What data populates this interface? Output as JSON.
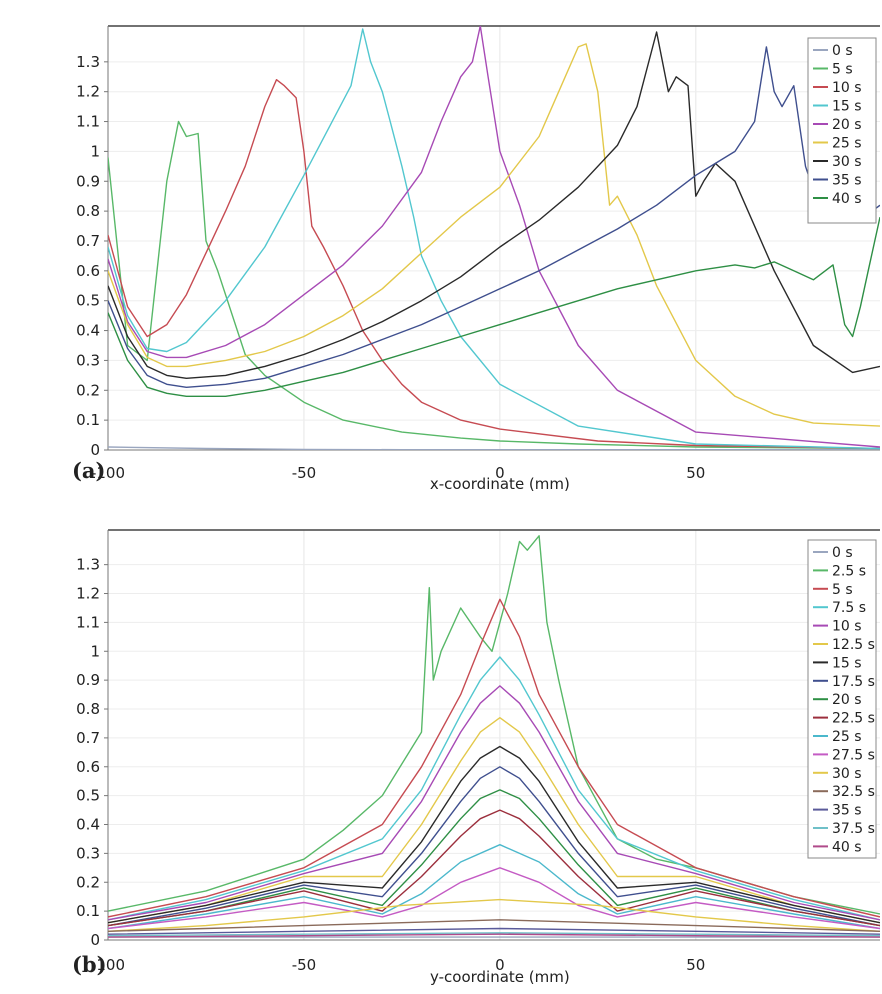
{
  "chart_data": [
    {
      "panel": "(a)",
      "type": "line",
      "title": "",
      "xlabel": "x-coordinate (mm)",
      "ylabel": "",
      "xlim": [
        -100,
        97
      ],
      "ylim": [
        0,
        1.42
      ],
      "x_ticks": [
        -100,
        -50,
        0,
        50
      ],
      "y_ticks": [
        0,
        0.1,
        0.2,
        0.3,
        0.4,
        0.5,
        0.6,
        0.7,
        0.8,
        0.9,
        1,
        1.1,
        1.2,
        1.3
      ],
      "grid": true,
      "legend_position": "top-right",
      "series": [
        {
          "name": "0 s",
          "color": "#9aa6bf",
          "x": [
            -100,
            -75,
            -50,
            -25,
            0,
            25,
            50,
            75,
            97
          ],
          "y": [
            0.01,
            0.005,
            0.002,
            0.001,
            0.001,
            0.001,
            0.001,
            0.001,
            0.001
          ]
        },
        {
          "name": "5 s",
          "color": "#58b868",
          "x": [
            -100,
            -95,
            -90,
            -85,
            -82,
            -80,
            -77,
            -75,
            -72,
            -65,
            -60,
            -50,
            -40,
            -25,
            -10,
            0,
            20,
            50,
            97
          ],
          "y": [
            0.98,
            0.35,
            0.3,
            0.9,
            1.1,
            1.05,
            1.06,
            0.7,
            0.6,
            0.32,
            0.25,
            0.16,
            0.1,
            0.06,
            0.04,
            0.03,
            0.02,
            0.01,
            0.005
          ]
        },
        {
          "name": "10 s",
          "color": "#c64b52",
          "x": [
            -100,
            -95,
            -90,
            -85,
            -80,
            -75,
            -70,
            -65,
            -60,
            -57,
            -55,
            -52,
            -50,
            -48,
            -45,
            -40,
            -35,
            -30,
            -25,
            -20,
            -10,
            0,
            25,
            50,
            97
          ],
          "y": [
            0.72,
            0.48,
            0.38,
            0.42,
            0.52,
            0.66,
            0.8,
            0.95,
            1.15,
            1.24,
            1.22,
            1.18,
            1.0,
            0.75,
            0.68,
            0.55,
            0.4,
            0.3,
            0.22,
            0.16,
            0.1,
            0.07,
            0.03,
            0.015,
            0.005
          ]
        },
        {
          "name": "15 s",
          "color": "#52c7cf",
          "x": [
            -100,
            -95,
            -90,
            -85,
            -80,
            -70,
            -60,
            -50,
            -42,
            -38,
            -35,
            -33,
            -30,
            -28,
            -25,
            -22,
            -20,
            -15,
            -10,
            0,
            20,
            50,
            97
          ],
          "y": [
            0.68,
            0.45,
            0.34,
            0.33,
            0.36,
            0.5,
            0.68,
            0.92,
            1.12,
            1.22,
            1.41,
            1.3,
            1.2,
            1.1,
            0.95,
            0.78,
            0.65,
            0.5,
            0.38,
            0.22,
            0.08,
            0.02,
            0.005
          ]
        },
        {
          "name": "20 s",
          "color": "#a74ab5",
          "x": [
            -100,
            -95,
            -90,
            -85,
            -80,
            -70,
            -60,
            -50,
            -40,
            -30,
            -20,
            -15,
            -10,
            -7,
            -5,
            -3,
            0,
            5,
            10,
            20,
            30,
            50,
            97
          ],
          "y": [
            0.64,
            0.43,
            0.33,
            0.31,
            0.31,
            0.35,
            0.42,
            0.52,
            0.62,
            0.75,
            0.93,
            1.1,
            1.25,
            1.3,
            1.42,
            1.25,
            1.0,
            0.82,
            0.6,
            0.35,
            0.2,
            0.06,
            0.01
          ]
        },
        {
          "name": "25 s",
          "color": "#e3c84a",
          "x": [
            -100,
            -95,
            -90,
            -85,
            -80,
            -70,
            -60,
            -50,
            -40,
            -30,
            -20,
            -10,
            0,
            10,
            15,
            20,
            22,
            25,
            28,
            30,
            35,
            40,
            50,
            60,
            70,
            80,
            97
          ],
          "y": [
            0.6,
            0.42,
            0.31,
            0.28,
            0.28,
            0.3,
            0.33,
            0.38,
            0.45,
            0.54,
            0.66,
            0.78,
            0.88,
            1.05,
            1.2,
            1.35,
            1.36,
            1.2,
            0.82,
            0.85,
            0.72,
            0.55,
            0.3,
            0.18,
            0.12,
            0.09,
            0.08
          ]
        },
        {
          "name": "30 s",
          "color": "#2a2a2a",
          "x": [
            -100,
            -95,
            -90,
            -85,
            -80,
            -70,
            -60,
            -50,
            -40,
            -30,
            -20,
            -10,
            0,
            10,
            20,
            30,
            35,
            40,
            43,
            45,
            48,
            50,
            52,
            55,
            60,
            70,
            80,
            90,
            97
          ],
          "y": [
            0.55,
            0.38,
            0.28,
            0.25,
            0.24,
            0.25,
            0.28,
            0.32,
            0.37,
            0.43,
            0.5,
            0.58,
            0.68,
            0.77,
            0.88,
            1.02,
            1.15,
            1.4,
            1.2,
            1.25,
            1.22,
            0.85,
            0.9,
            0.96,
            0.9,
            0.6,
            0.35,
            0.26,
            0.28
          ]
        },
        {
          "name": "35 s",
          "color": "#3f4f8e",
          "x": [
            -100,
            -95,
            -90,
            -85,
            -80,
            -70,
            -60,
            -50,
            -40,
            -30,
            -20,
            -10,
            0,
            10,
            20,
            30,
            40,
            50,
            55,
            60,
            65,
            68,
            70,
            72,
            75,
            78,
            80,
            85,
            90,
            95,
            97
          ],
          "y": [
            0.5,
            0.34,
            0.25,
            0.22,
            0.21,
            0.22,
            0.24,
            0.28,
            0.32,
            0.37,
            0.42,
            0.48,
            0.54,
            0.6,
            0.67,
            0.74,
            0.82,
            0.92,
            0.96,
            1.0,
            1.1,
            1.35,
            1.2,
            1.15,
            1.22,
            0.95,
            0.87,
            0.82,
            0.78,
            0.8,
            0.82
          ]
        },
        {
          "name": "40 s",
          "color": "#2e8f45",
          "x": [
            -100,
            -95,
            -90,
            -85,
            -80,
            -70,
            -60,
            -50,
            -40,
            -30,
            -20,
            -10,
            0,
            10,
            20,
            30,
            40,
            50,
            60,
            65,
            70,
            75,
            80,
            85,
            88,
            90,
            92,
            94,
            97
          ],
          "y": [
            0.46,
            0.3,
            0.21,
            0.19,
            0.18,
            0.18,
            0.2,
            0.23,
            0.26,
            0.3,
            0.34,
            0.38,
            0.42,
            0.46,
            0.5,
            0.54,
            0.57,
            0.6,
            0.62,
            0.61,
            0.63,
            0.6,
            0.57,
            0.62,
            0.42,
            0.38,
            0.48,
            0.6,
            0.78
          ]
        }
      ]
    },
    {
      "panel": "(b)",
      "type": "line",
      "title": "",
      "xlabel": "y-coordinate (mm)",
      "ylabel": "",
      "xlim": [
        -100,
        97
      ],
      "ylim": [
        0,
        1.42
      ],
      "x_ticks": [
        -100,
        -50,
        0,
        50
      ],
      "y_ticks": [
        0,
        0.1,
        0.2,
        0.3,
        0.4,
        0.5,
        0.6,
        0.7,
        0.8,
        0.9,
        1,
        1.1,
        1.2,
        1.3
      ],
      "grid": true,
      "legend_position": "top-right",
      "series": [
        {
          "name": "0 s",
          "color": "#9aa6bf",
          "x": [
            -100,
            97
          ],
          "y": [
            0.01,
            0.01
          ]
        },
        {
          "name": "2.5 s",
          "color": "#58b868",
          "x": [
            -100,
            -75,
            -50,
            -40,
            -30,
            -20,
            -18,
            -17,
            -15,
            -10,
            -5,
            -2,
            0,
            2,
            5,
            7,
            10,
            12,
            15,
            20,
            30,
            40,
            50,
            75,
            97
          ],
          "y": [
            0.1,
            0.17,
            0.28,
            0.38,
            0.5,
            0.72,
            1.22,
            0.9,
            1.0,
            1.15,
            1.05,
            1.0,
            1.1,
            1.2,
            1.38,
            1.35,
            1.4,
            1.1,
            0.9,
            0.6,
            0.35,
            0.28,
            0.25,
            0.15,
            0.09
          ]
        },
        {
          "name": "5 s",
          "color": "#c64b52",
          "x": [
            -100,
            -75,
            -50,
            -30,
            -20,
            -10,
            -5,
            0,
            5,
            10,
            20,
            30,
            50,
            75,
            97
          ],
          "y": [
            0.08,
            0.15,
            0.25,
            0.4,
            0.6,
            0.85,
            1.02,
            1.18,
            1.05,
            0.85,
            0.6,
            0.4,
            0.25,
            0.15,
            0.08
          ]
        },
        {
          "name": "7.5 s",
          "color": "#52c7cf",
          "x": [
            -100,
            -75,
            -50,
            -30,
            -20,
            -10,
            -5,
            0,
            5,
            10,
            20,
            30,
            50,
            75,
            97
          ],
          "y": [
            0.07,
            0.14,
            0.24,
            0.35,
            0.52,
            0.78,
            0.9,
            0.98,
            0.9,
            0.78,
            0.52,
            0.35,
            0.24,
            0.14,
            0.07
          ]
        },
        {
          "name": "10 s",
          "color": "#a74ab5",
          "x": [
            -100,
            -75,
            -50,
            -30,
            -20,
            -10,
            -5,
            0,
            5,
            10,
            20,
            30,
            50,
            75,
            97
          ],
          "y": [
            0.07,
            0.13,
            0.23,
            0.3,
            0.48,
            0.72,
            0.82,
            0.88,
            0.82,
            0.72,
            0.48,
            0.3,
            0.23,
            0.13,
            0.07
          ]
        },
        {
          "name": "12.5 s",
          "color": "#e3c84a",
          "x": [
            -100,
            -75,
            -50,
            -30,
            -20,
            -10,
            -5,
            0,
            5,
            10,
            20,
            30,
            50,
            75,
            97
          ],
          "y": [
            0.06,
            0.12,
            0.22,
            0.22,
            0.4,
            0.62,
            0.72,
            0.77,
            0.72,
            0.62,
            0.4,
            0.22,
            0.22,
            0.12,
            0.06
          ]
        },
        {
          "name": "15 s",
          "color": "#2a2a2a",
          "x": [
            -100,
            -75,
            -50,
            -30,
            -20,
            -10,
            -5,
            0,
            5,
            10,
            20,
            30,
            50,
            75,
            97
          ],
          "y": [
            0.06,
            0.12,
            0.2,
            0.18,
            0.34,
            0.55,
            0.63,
            0.67,
            0.63,
            0.55,
            0.34,
            0.18,
            0.2,
            0.12,
            0.06
          ]
        },
        {
          "name": "17.5 s",
          "color": "#3f4f8e",
          "x": [
            -100,
            -75,
            -50,
            -30,
            -20,
            -10,
            -5,
            0,
            5,
            10,
            20,
            30,
            50,
            75,
            97
          ],
          "y": [
            0.05,
            0.11,
            0.19,
            0.15,
            0.3,
            0.48,
            0.56,
            0.6,
            0.56,
            0.48,
            0.3,
            0.15,
            0.19,
            0.11,
            0.05
          ]
        },
        {
          "name": "20 s",
          "color": "#2e8f45",
          "x": [
            -100,
            -75,
            -50,
            -30,
            -20,
            -10,
            -5,
            0,
            5,
            10,
            20,
            30,
            50,
            75,
            97
          ],
          "y": [
            0.05,
            0.1,
            0.18,
            0.12,
            0.26,
            0.42,
            0.49,
            0.52,
            0.49,
            0.42,
            0.26,
            0.12,
            0.18,
            0.1,
            0.05
          ]
        },
        {
          "name": "22.5 s",
          "color": "#9c2f3d",
          "x": [
            -100,
            -75,
            -50,
            -30,
            -20,
            -10,
            -5,
            0,
            5,
            10,
            20,
            30,
            50,
            75,
            97
          ],
          "y": [
            0.05,
            0.1,
            0.17,
            0.1,
            0.22,
            0.36,
            0.42,
            0.45,
            0.42,
            0.36,
            0.22,
            0.1,
            0.17,
            0.1,
            0.05
          ]
        },
        {
          "name": "25 s",
          "color": "#4bb8cc",
          "x": [
            -100,
            -75,
            -50,
            -30,
            -20,
            -10,
            0,
            10,
            20,
            30,
            50,
            75,
            97
          ],
          "y": [
            0.04,
            0.09,
            0.15,
            0.09,
            0.16,
            0.27,
            0.33,
            0.27,
            0.16,
            0.09,
            0.15,
            0.09,
            0.04
          ]
        },
        {
          "name": "27.5 s",
          "color": "#c45bc4",
          "x": [
            -100,
            -75,
            -50,
            -30,
            -20,
            -10,
            0,
            10,
            20,
            30,
            50,
            75,
            97
          ],
          "y": [
            0.04,
            0.08,
            0.13,
            0.08,
            0.12,
            0.2,
            0.25,
            0.2,
            0.12,
            0.08,
            0.13,
            0.08,
            0.04
          ]
        },
        {
          "name": "30 s",
          "color": "#e3c84a",
          "x": [
            -100,
            -75,
            -50,
            -25,
            0,
            25,
            50,
            75,
            97
          ],
          "y": [
            0.03,
            0.05,
            0.08,
            0.12,
            0.14,
            0.12,
            0.08,
            0.05,
            0.03
          ]
        },
        {
          "name": "32.5 s",
          "color": "#8a6a5a",
          "x": [
            -100,
            -75,
            -50,
            -25,
            0,
            25,
            50,
            75,
            97
          ],
          "y": [
            0.03,
            0.04,
            0.05,
            0.06,
            0.07,
            0.06,
            0.05,
            0.04,
            0.03
          ]
        },
        {
          "name": "35 s",
          "color": "#5a5a9a",
          "x": [
            -100,
            -50,
            0,
            50,
            97
          ],
          "y": [
            0.02,
            0.03,
            0.04,
            0.03,
            0.02
          ]
        },
        {
          "name": "37.5 s",
          "color": "#6fc0c8",
          "x": [
            -100,
            -50,
            0,
            50,
            97
          ],
          "y": [
            0.015,
            0.02,
            0.025,
            0.02,
            0.015
          ]
        },
        {
          "name": "40 s",
          "color": "#b04a8a",
          "x": [
            -100,
            -50,
            0,
            50,
            97
          ],
          "y": [
            0.01,
            0.015,
            0.02,
            0.015,
            0.01
          ]
        }
      ]
    }
  ]
}
